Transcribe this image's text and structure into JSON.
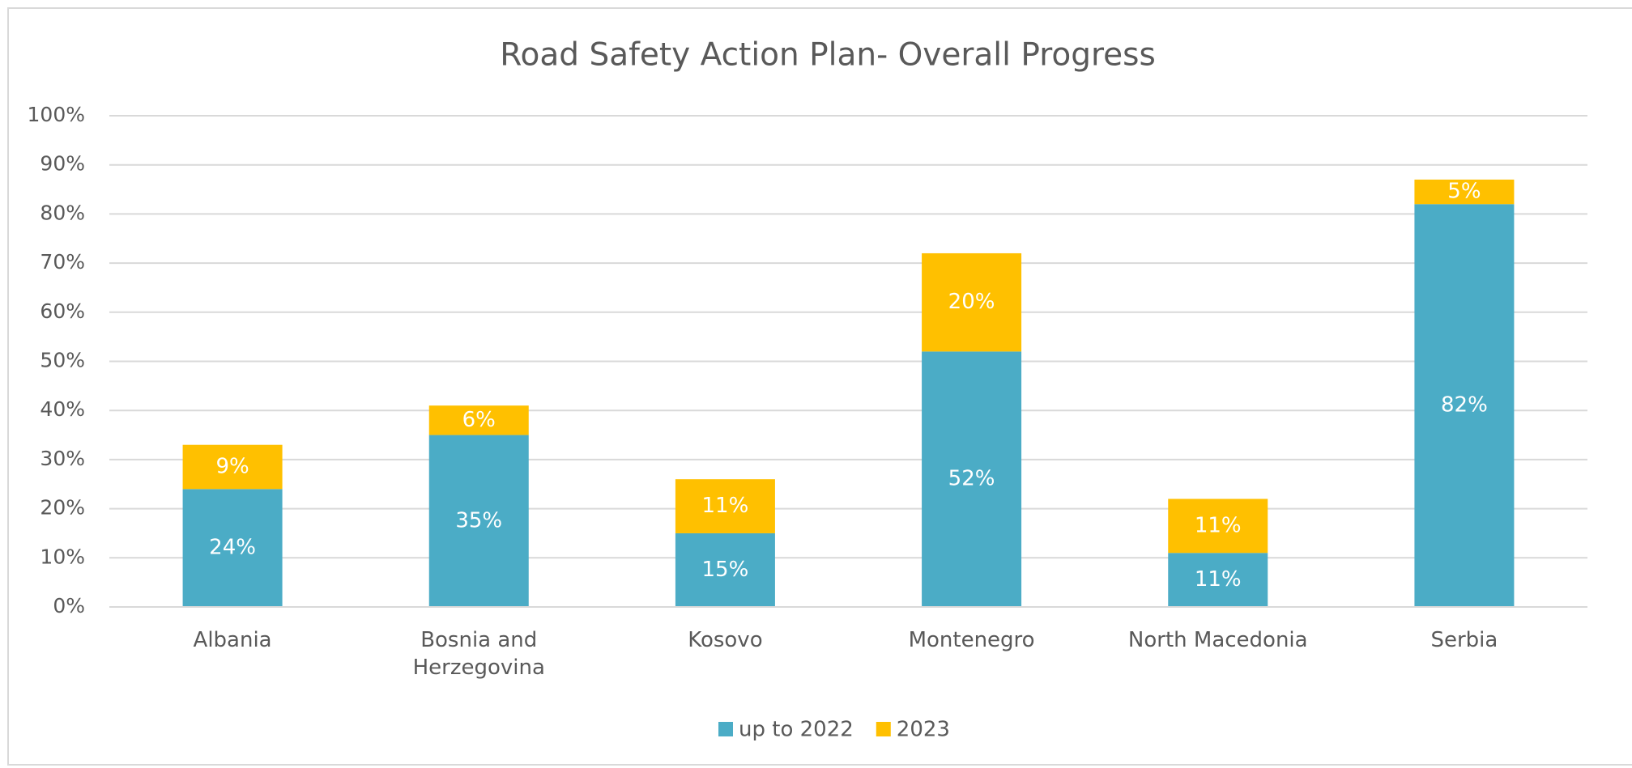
{
  "chart_data": {
    "type": "stacked_bar",
    "title": "Road Safety Action Plan- Overall Progress",
    "categories": [
      "Albania",
      "Bosnia and Herzegovina",
      "Kosovo",
      "Montenegro",
      "North Macedonia",
      "Serbia"
    ],
    "series": [
      {
        "name": "up to 2022",
        "color": "#4bacc6",
        "values": [
          24,
          35,
          15,
          52,
          11,
          82
        ],
        "value_labels": [
          "24%",
          "35%",
          "15%",
          "52%",
          "11%",
          "82%"
        ]
      },
      {
        "name": "2023",
        "color": "#ffc000",
        "values": [
          9,
          6,
          11,
          20,
          11,
          5
        ],
        "value_labels": [
          "9%",
          "6%",
          "11%",
          "20%",
          "11%",
          "5%"
        ]
      }
    ],
    "ylim": [
      0,
      100
    ],
    "yticks": [
      {
        "value": 0,
        "label": "0%"
      },
      {
        "value": 10,
        "label": "10%"
      },
      {
        "value": 20,
        "label": "20%"
      },
      {
        "value": 30,
        "label": "30%"
      },
      {
        "value": 40,
        "label": "40%"
      },
      {
        "value": 50,
        "label": "50%"
      },
      {
        "value": 60,
        "label": "60%"
      },
      {
        "value": 70,
        "label": "70%"
      },
      {
        "value": 80,
        "label": "80%"
      },
      {
        "value": 90,
        "label": "90%"
      },
      {
        "value": 100,
        "label": "100%"
      }
    ],
    "grid": true,
    "legend": "bottom"
  }
}
